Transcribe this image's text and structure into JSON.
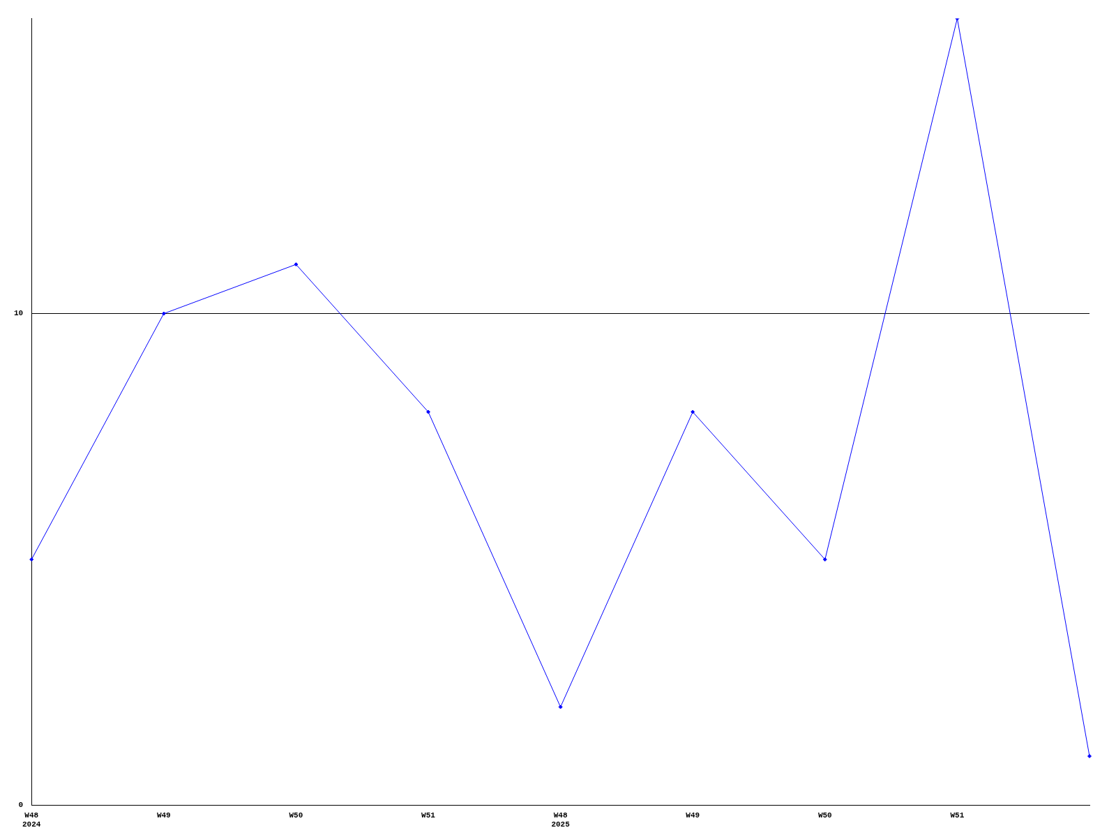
{
  "chart_data": {
    "type": "line",
    "categories": [
      "W48\n2024",
      "W49",
      "W50",
      "W51",
      "W48\n2025",
      "W49",
      "W50",
      "W51",
      null
    ],
    "series": [
      {
        "color": "#0000ff",
        "values": [
          5,
          10,
          11,
          8,
          2,
          8,
          5,
          16,
          1
        ]
      }
    ],
    "ylim": [
      0,
      16
    ],
    "yticks": [
      0,
      10
    ],
    "grid": "y",
    "legend": false,
    "marker": "diamond",
    "line_style": "solid"
  }
}
